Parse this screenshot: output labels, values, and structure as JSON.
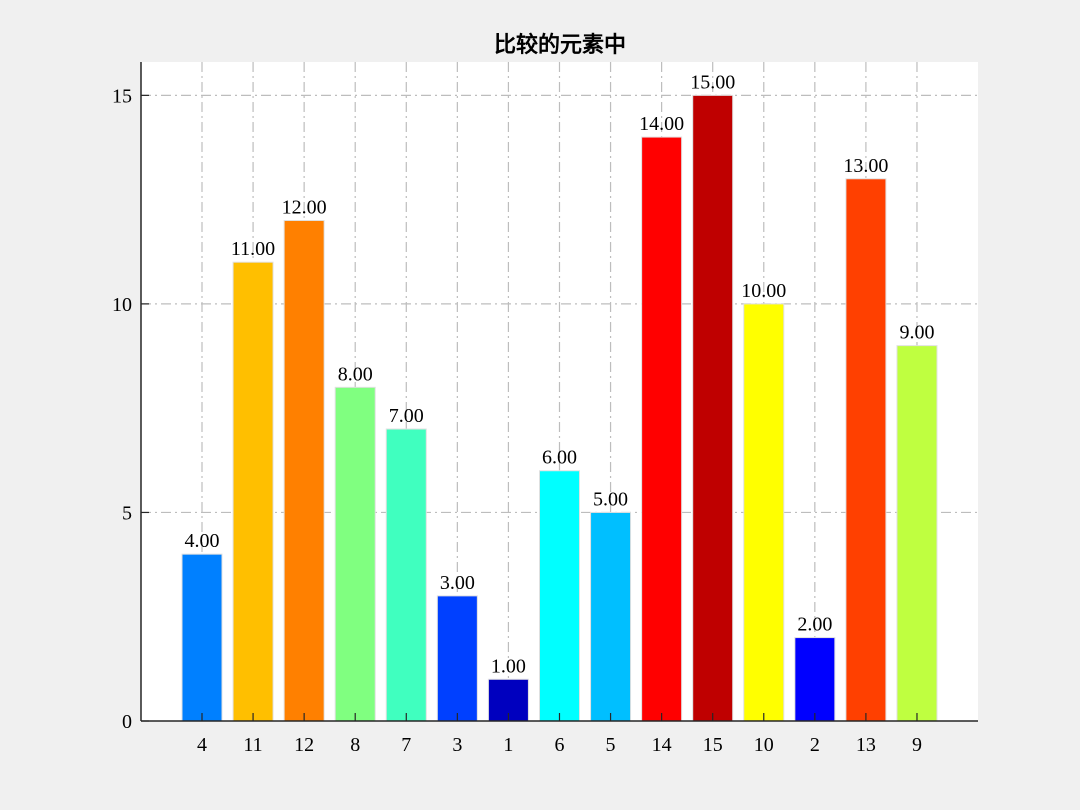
{
  "chart_data": {
    "type": "bar",
    "title": "比较的元素中",
    "xlabel": "",
    "ylabel": "",
    "categories": [
      "4",
      "11",
      "12",
      "8",
      "7",
      "3",
      "1",
      "6",
      "5",
      "14",
      "15",
      "10",
      "2",
      "13",
      "9"
    ],
    "values": [
      4,
      11,
      12,
      8,
      7,
      3,
      1,
      6,
      5,
      14,
      15,
      10,
      2,
      13,
      9
    ],
    "data_labels": [
      "4.00",
      "11.00",
      "12.00",
      "8.00",
      "7.00",
      "3.00",
      "1.00",
      "6.00",
      "5.00",
      "14.00",
      "15.00",
      "10.00",
      "2.00",
      "13.00",
      "9.00"
    ],
    "colors": [
      "#0080ff",
      "#ffbf00",
      "#ff8000",
      "#80ff80",
      "#40ffbf",
      "#0040ff",
      "#0000bf",
      "#00ffff",
      "#00bfff",
      "#ff0000",
      "#bf0000",
      "#ffff00",
      "#0000ff",
      "#ff4000",
      "#bfff40"
    ],
    "ylim": [
      0,
      15.8
    ],
    "yticks": [
      0,
      5,
      10,
      15
    ],
    "grid": true,
    "grid_style": "dash-dot",
    "plot_background": "#ffffff",
    "figure_background": "#f0f0f0"
  }
}
